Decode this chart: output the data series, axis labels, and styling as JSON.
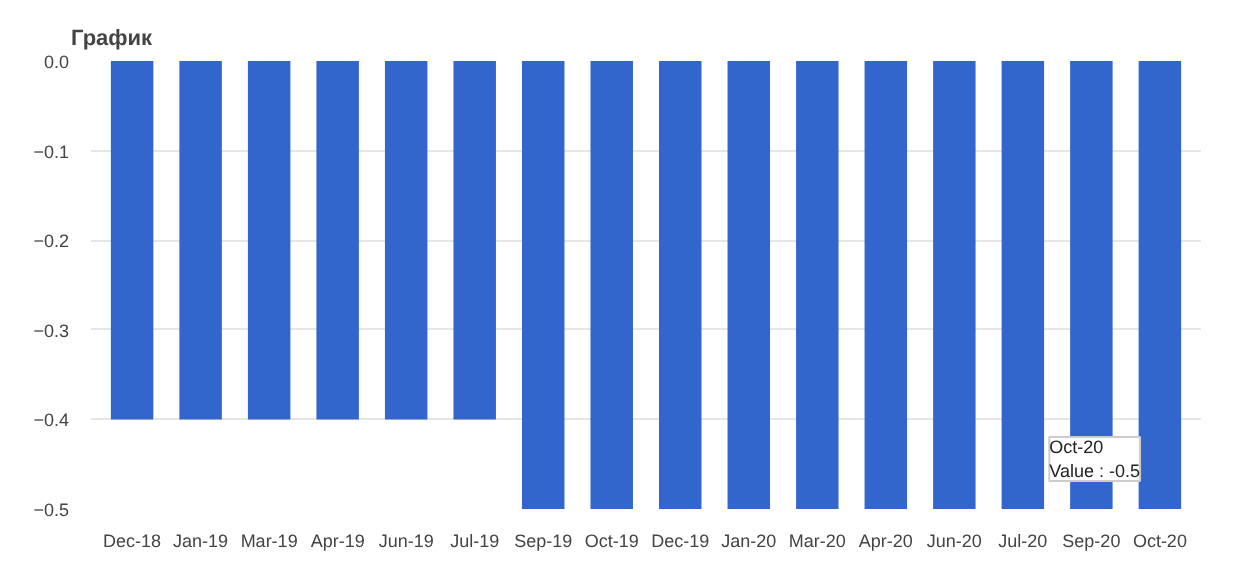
{
  "chart_data": {
    "type": "bar",
    "title": "График",
    "categories": [
      "Dec-18",
      "Jan-19",
      "Mar-19",
      "Apr-19",
      "Jun-19",
      "Jul-19",
      "Sep-19",
      "Oct-19",
      "Dec-19",
      "Jan-20",
      "Mar-20",
      "Apr-20",
      "Jun-20",
      "Jul-20",
      "Sep-20",
      "Oct-20"
    ],
    "values": [
      -0.4,
      -0.4,
      -0.4,
      -0.4,
      -0.4,
      -0.4,
      -0.5,
      -0.5,
      -0.5,
      -0.5,
      -0.5,
      -0.5,
      -0.5,
      -0.5,
      -0.5,
      -0.5
    ],
    "color": "#3366cc",
    "ylim": [
      -0.5,
      0.0
    ],
    "yticks": [
      {
        "value": 0.0,
        "label": "0.0"
      },
      -0.1,
      -0.2,
      -0.3,
      -0.4,
      -0.5
    ],
    "grid": "y",
    "annotations": [
      {
        "text": "Oct-20\nValue : -0.5",
        "x": "Oct-20",
        "y": -0.5
      }
    ]
  }
}
